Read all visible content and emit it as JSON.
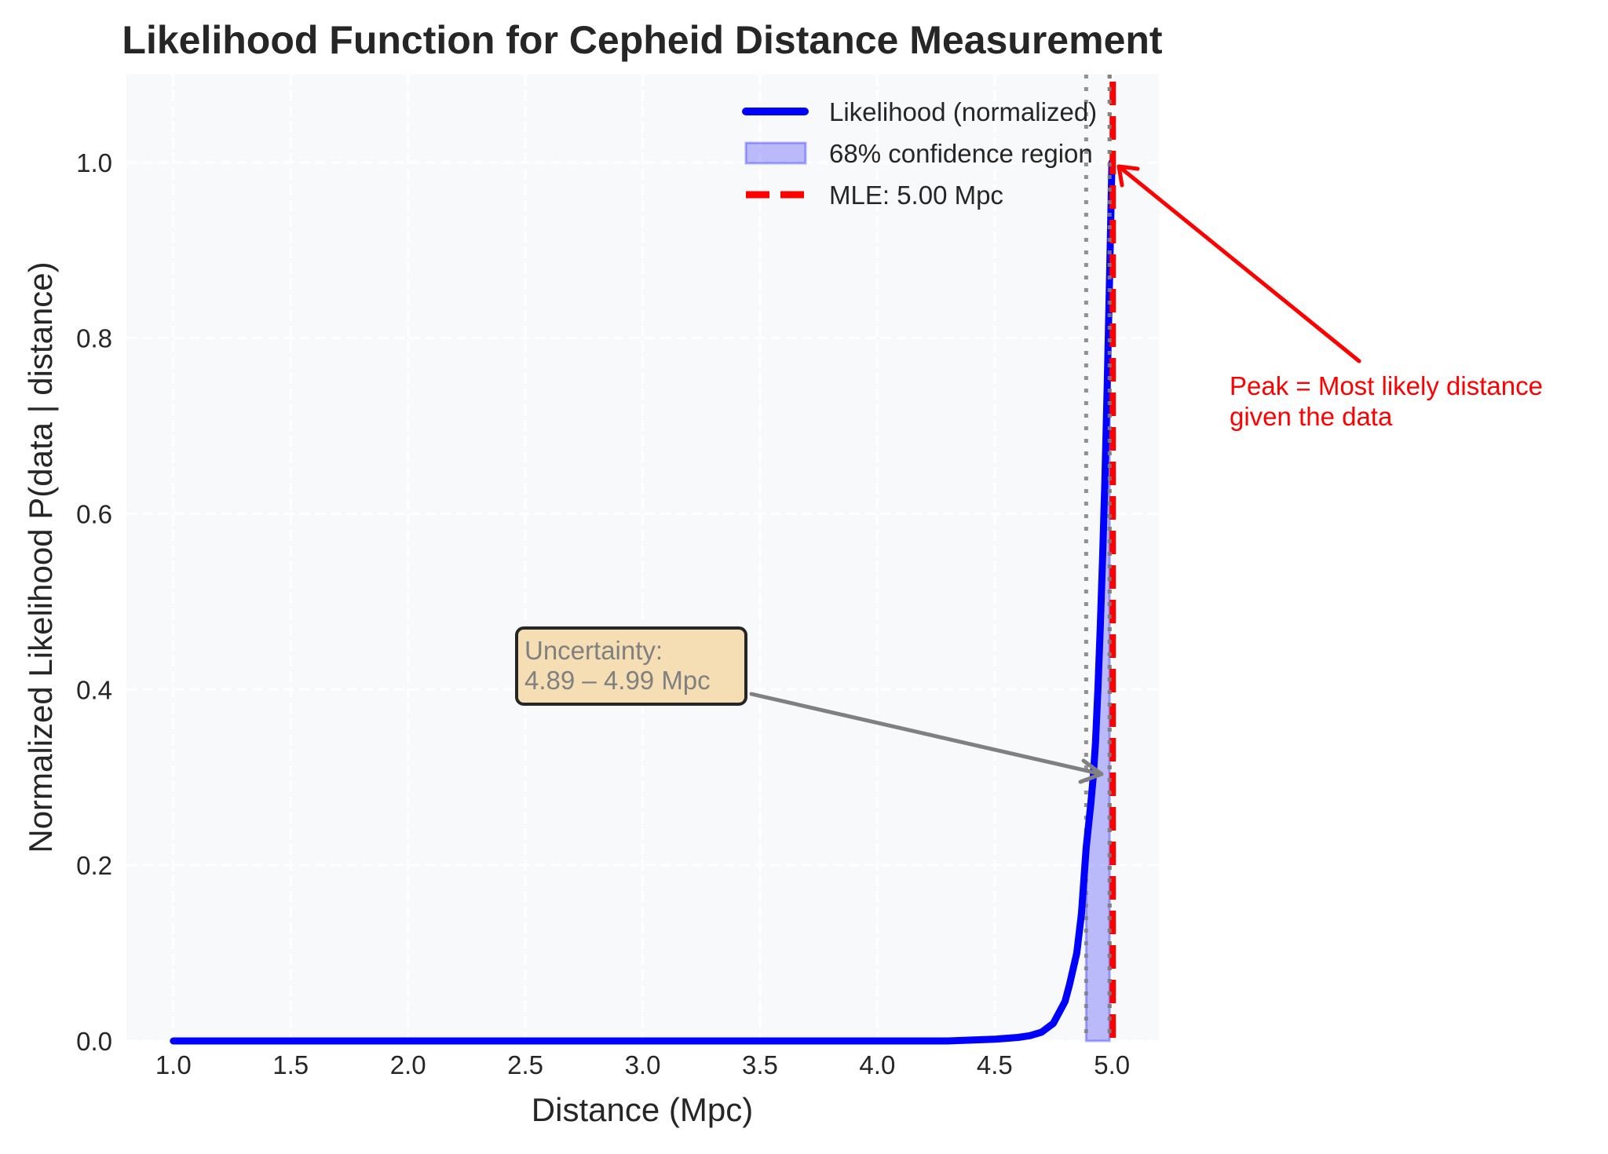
{
  "chart_data": {
    "type": "line",
    "title": "Likelihood Function for Cepheid Distance Measurement",
    "xlabel": "Distance (Mpc)",
    "ylabel": "Normalized Likelihood  P(data | distance)",
    "xlim": [
      0.8,
      5.2
    ],
    "ylim": [
      0.0,
      1.1
    ],
    "xticks": [
      1.0,
      1.5,
      2.0,
      2.5,
      3.0,
      3.5,
      4.0,
      4.5,
      5.0
    ],
    "xtick_labels": [
      "1.0",
      "1.5",
      "2.0",
      "2.5",
      "3.0",
      "3.5",
      "4.0",
      "4.5",
      "5.0"
    ],
    "yticks": [
      0.0,
      0.2,
      0.4,
      0.6,
      0.8,
      1.0
    ],
    "ytick_labels": [
      "0.0",
      "0.2",
      "0.4",
      "0.6",
      "0.8",
      "1.0"
    ],
    "grid": true,
    "series": [
      {
        "name": "Likelihood (normalized)",
        "color": "#0000ff",
        "x": [
          1.0,
          1.5,
          2.0,
          2.5,
          3.0,
          3.5,
          4.0,
          4.3,
          4.5,
          4.6,
          4.65,
          4.7,
          4.75,
          4.8,
          4.82,
          4.85,
          4.87,
          4.89,
          4.91,
          4.92,
          4.93,
          4.94,
          4.95,
          4.96,
          4.97,
          4.98,
          4.99,
          5.0
        ],
        "y": [
          0.0,
          0.0,
          0.0,
          0.0,
          0.0,
          0.0,
          0.0,
          0.0,
          0.002,
          0.004,
          0.006,
          0.01,
          0.02,
          0.045,
          0.065,
          0.1,
          0.145,
          0.22,
          0.27,
          0.3,
          0.34,
          0.4,
          0.47,
          0.55,
          0.64,
          0.75,
          0.87,
          1.0
        ]
      }
    ],
    "confidence_region": {
      "label": "68% confidence region",
      "x_low": 4.89,
      "x_high": 4.99,
      "color": "#0000ff",
      "alpha": 0.25
    },
    "mle_line": {
      "label": "MLE: 5.00 Mpc",
      "x": 5.0,
      "color": "#ff0000"
    },
    "bound_lines": [
      4.89,
      4.99
    ],
    "legend": {
      "placement": "upper-right",
      "entries": [
        {
          "label": "Likelihood (normalized)",
          "kind": "line",
          "color": "#0000ff"
        },
        {
          "label": "68% confidence region",
          "kind": "patch",
          "color": "#0000ff"
        },
        {
          "label": "MLE: 5.00 Mpc",
          "kind": "dashed",
          "color": "#ff0000"
        }
      ]
    },
    "annotations": [
      {
        "id": "peak",
        "lines": [
          "Peak = Most likely distance",
          "given the data"
        ],
        "point": [
          5.0,
          1.0
        ],
        "color": "#ff0000"
      },
      {
        "id": "uncertainty",
        "lines": [
          "Uncertainty:",
          "4.89 – 4.99 Mpc"
        ],
        "point": [
          4.95,
          0.3
        ],
        "color": "#808080",
        "box_color": "#f5deb3"
      }
    ]
  },
  "colors": {
    "plot_bg": "#f8f9fa",
    "text": "#262626",
    "grid": "#ffffff",
    "bound_line": "#808080"
  }
}
